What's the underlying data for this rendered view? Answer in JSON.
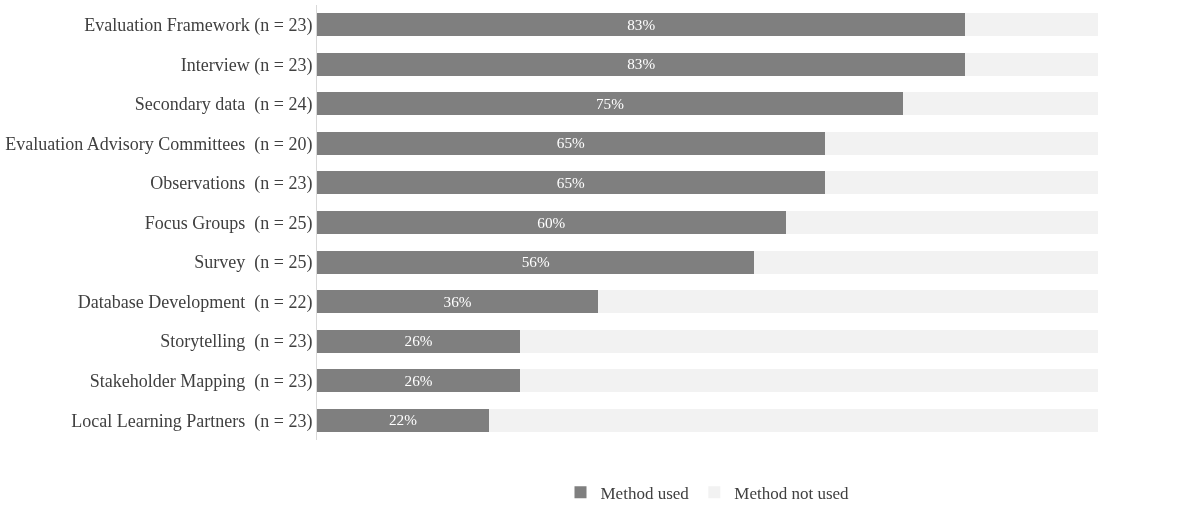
{
  "chart_data": {
    "type": "bar",
    "orientation": "horizontal",
    "stacked": true,
    "categories": [
      "Evaluation Framework (n = 23)",
      "Interview (n = 23)",
      "Secondary data  (n = 24)",
      "Evaluation Advisory Committees  (n = 20)",
      "Observations  (n = 23)",
      "Focus Groups  (n = 25)",
      "Survey  (n = 25)",
      "Database Development  (n = 22)",
      "Storytelling  (n = 23)",
      "Stakeholder Mapping  (n = 23)",
      "Local Learning Partners  (n = 23)"
    ],
    "series": [
      {
        "name": "Method used",
        "color": "#7f7f7f",
        "values": [
          83,
          83,
          75,
          65,
          65,
          60,
          56,
          36,
          26,
          26,
          22
        ],
        "value_labels": [
          "83%",
          "83%",
          "75%",
          "65%",
          "65%",
          "60%",
          "56%",
          "36%",
          "26%",
          "26%",
          "22%"
        ]
      },
      {
        "name": "Method not used",
        "color": "#f2f2f2",
        "values": [
          17,
          17,
          25,
          35,
          35,
          40,
          44,
          64,
          74,
          74,
          78
        ]
      }
    ],
    "xlim": [
      0,
      100
    ],
    "tick_labels": "y",
    "legend": "bottom"
  }
}
